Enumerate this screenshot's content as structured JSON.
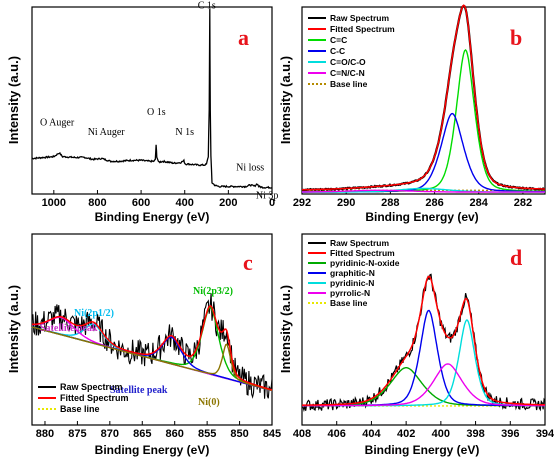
{
  "chart_data": [
    {
      "panel": "a",
      "type": "line",
      "xlabel": "Binding Energy (eV)",
      "ylabel": "Intensity (a.u.)",
      "xlim": [
        1100,
        0
      ],
      "ylim": [
        0,
        100
      ],
      "xticks": [
        1000,
        800,
        600,
        400,
        200,
        0
      ],
      "tick_labels": [
        "1000",
        "800",
        "600",
        "400",
        "200",
        "0"
      ],
      "panel_label": "a",
      "panel_label_color": "#e8141c",
      "annotations": [
        {
          "text": "O Auger",
          "x": 985,
          "y": 35
        },
        {
          "text": "Ni Auger",
          "x": 760,
          "y": 30
        },
        {
          "text": "O 1s",
          "x": 530,
          "y": 39
        },
        {
          "text": "N 1s",
          "x": 400,
          "y": 30
        },
        {
          "text": "C 1s",
          "x": 290,
          "y": 98
        },
        {
          "text": "Ni loss",
          "x": 100,
          "y": 11
        },
        {
          "text": "Ni 3p",
          "x": 68,
          "y": 3
        }
      ],
      "series": [
        {
          "color": "#000000",
          "x": [
            1100,
            1050,
            1000,
            975,
            960,
            900,
            860,
            820,
            780,
            740,
            700,
            650,
            600,
            560,
            540,
            535,
            531,
            528,
            520,
            500,
            450,
            420,
            404,
            400,
            396,
            380,
            340,
            310,
            300,
            292,
            288,
            285,
            283,
            280,
            275,
            260,
            240,
            200,
            160,
            120,
            100,
            80,
            68,
            60,
            40,
            20,
            0
          ],
          "y": [
            19,
            19.5,
            20,
            22,
            20,
            19.5,
            19.6,
            18.5,
            19,
            17.5,
            17.5,
            18,
            18,
            17.5,
            17.5,
            18.5,
            26,
            20,
            17,
            17.5,
            16.5,
            16.8,
            17.8,
            16.5,
            16,
            16,
            15.5,
            15.5,
            16,
            20,
            45,
            99,
            45,
            20,
            6,
            4.5,
            4,
            4,
            4,
            4,
            4.8,
            4.2,
            5.5,
            4,
            3.5,
            3.5,
            3.5
          ]
        }
      ]
    },
    {
      "panel": "b",
      "type": "line",
      "xlabel": "Binding Energy (ev)",
      "ylabel": "Intensity (a.u.)",
      "xlim": [
        292,
        281
      ],
      "ylim": [
        0,
        100
      ],
      "xticks": [
        292,
        290,
        288,
        286,
        284,
        282
      ],
      "tick_labels": [
        "292",
        "290",
        "288",
        "286",
        "284",
        "282"
      ],
      "panel_label": "b",
      "panel_label_color": "#e8141c",
      "legend_position": "top-left",
      "legend": [
        "Raw Spectrum",
        "Fitted Spectrum",
        "C=C",
        "C-C",
        "C=O/C-O",
        "C=N/C-N",
        "Base line"
      ],
      "series": [
        {
          "name": "Raw Spectrum",
          "color": "#000000",
          "type": "raw",
          "center": 284.75,
          "width": 0.55,
          "height": 90,
          "baseline": 2
        },
        {
          "name": "Fitted Spectrum",
          "color": "#ff0000",
          "type": "fit",
          "center": 284.75,
          "width": 0.55,
          "height": 90,
          "baseline": 2
        },
        {
          "name": "C=C",
          "color": "#00dd00",
          "type": "peak",
          "center": 284.6,
          "width": 0.45,
          "height": 76,
          "baseline": 0
        },
        {
          "name": "C-C",
          "color": "#0000ee",
          "type": "peak",
          "center": 285.2,
          "width": 0.55,
          "height": 42,
          "baseline": 0
        },
        {
          "name": "C=O/C-O",
          "color": "#00dddd",
          "type": "peak",
          "center": 286.5,
          "width": 1.2,
          "height": 2,
          "baseline": 1
        },
        {
          "name": "C=N/C-N",
          "color": "#ee00ee",
          "type": "peak",
          "center": 288.5,
          "width": 1.5,
          "height": 1,
          "baseline": 1
        },
        {
          "name": "Base line",
          "color": "#b58b00",
          "type": "baseline",
          "center": 0,
          "width": 1,
          "height": 0,
          "baseline": 1
        }
      ]
    },
    {
      "panel": "c",
      "type": "line",
      "xlabel": "Binding Energy (eV)",
      "ylabel": "Intensity (a.u.)",
      "xlim": [
        882,
        845
      ],
      "ylim": [
        0,
        100
      ],
      "xticks": [
        880,
        875,
        870,
        865,
        860,
        855,
        850,
        845
      ],
      "tick_labels": [
        "880",
        "875",
        "870",
        "865",
        "860",
        "855",
        "850",
        "845"
      ],
      "panel_label": "c",
      "panel_label_color": "#e8141c",
      "legend_position": "bottom-left",
      "legend": [
        "Raw Spectrum",
        "Fitted Spectrum",
        "Base line"
      ],
      "annotations": [
        {
          "text": "Ni(2p1/2)",
          "color": "#00bbee"
        },
        {
          "text": "Ni(2p3/2)",
          "color": "#00bb00"
        },
        {
          "text": "Satellite peak",
          "color": "#cc33cc"
        },
        {
          "text": "Satellite peak",
          "color": "#2222cc"
        },
        {
          "text": "Ni(0)",
          "color": "#8b7500"
        }
      ],
      "series": [
        {
          "name": "Raw Spectrum",
          "color": "#000000",
          "type": "raw"
        },
        {
          "name": "Fitted Spectrum",
          "color": "#ff0000",
          "type": "fit"
        },
        {
          "name": "Base line",
          "color": "#e8e800",
          "type": "baseline"
        },
        {
          "name": "Ni(2p1/2)",
          "color": "#00ccee",
          "type": "peak",
          "center": 872.5,
          "width": 1.6,
          "height": 10
        },
        {
          "name": "Ni(2p3/2)",
          "color": "#00bb00",
          "type": "peak",
          "center": 854.5,
          "width": 1.4,
          "height": 35
        },
        {
          "name": "Satellite peak",
          "color": "#ee00ee",
          "type": "peak",
          "center": 877.5,
          "width": 2.2,
          "height": 9
        },
        {
          "name": "Satellite peak",
          "color": "#0000ee",
          "type": "peak",
          "center": 860.5,
          "width": 1.6,
          "height": 14
        },
        {
          "name": "Ni(0)",
          "color": "#8b7500",
          "type": "peak",
          "center": 852.0,
          "width": 0.7,
          "height": 18
        }
      ]
    },
    {
      "panel": "d",
      "type": "line",
      "xlabel": "Binding Energy (eV)",
      "ylabel": "Intensity (a.u.)",
      "xlim": [
        408,
        394
      ],
      "ylim": [
        0,
        100
      ],
      "xticks": [
        408,
        406,
        404,
        402,
        400,
        398,
        396,
        394
      ],
      "tick_labels": [
        "408",
        "406",
        "404",
        "402",
        "400",
        "398",
        "396",
        "394"
      ],
      "panel_label": "d",
      "panel_label_color": "#e8141c",
      "legend_position": "top-left",
      "legend": [
        "Raw Spectrum",
        "Fitted Spectrum",
        "pyridinic-N-oxide",
        "graphitic-N",
        "pyridinic-N",
        "pyrrolic-N",
        "Base line"
      ],
      "series": [
        {
          "name": "Raw Spectrum",
          "color": "#000000",
          "type": "raw"
        },
        {
          "name": "Fitted Spectrum",
          "color": "#ff0000",
          "type": "fit"
        },
        {
          "name": "pyridinic-N-oxide",
          "color": "#00aa00",
          "type": "peak",
          "center": 402.0,
          "width": 1.0,
          "height": 20
        },
        {
          "name": "graphitic-N",
          "color": "#0000ee",
          "type": "peak",
          "center": 400.7,
          "width": 0.55,
          "height": 50
        },
        {
          "name": "pyridinic-N",
          "color": "#00dddd",
          "type": "peak",
          "center": 398.5,
          "width": 0.5,
          "height": 45
        },
        {
          "name": "pyrrolic-N",
          "color": "#ee00ee",
          "type": "peak",
          "center": 399.6,
          "width": 0.9,
          "height": 22
        },
        {
          "name": "Base line",
          "color": "#e8e800",
          "type": "baseline"
        }
      ]
    }
  ]
}
